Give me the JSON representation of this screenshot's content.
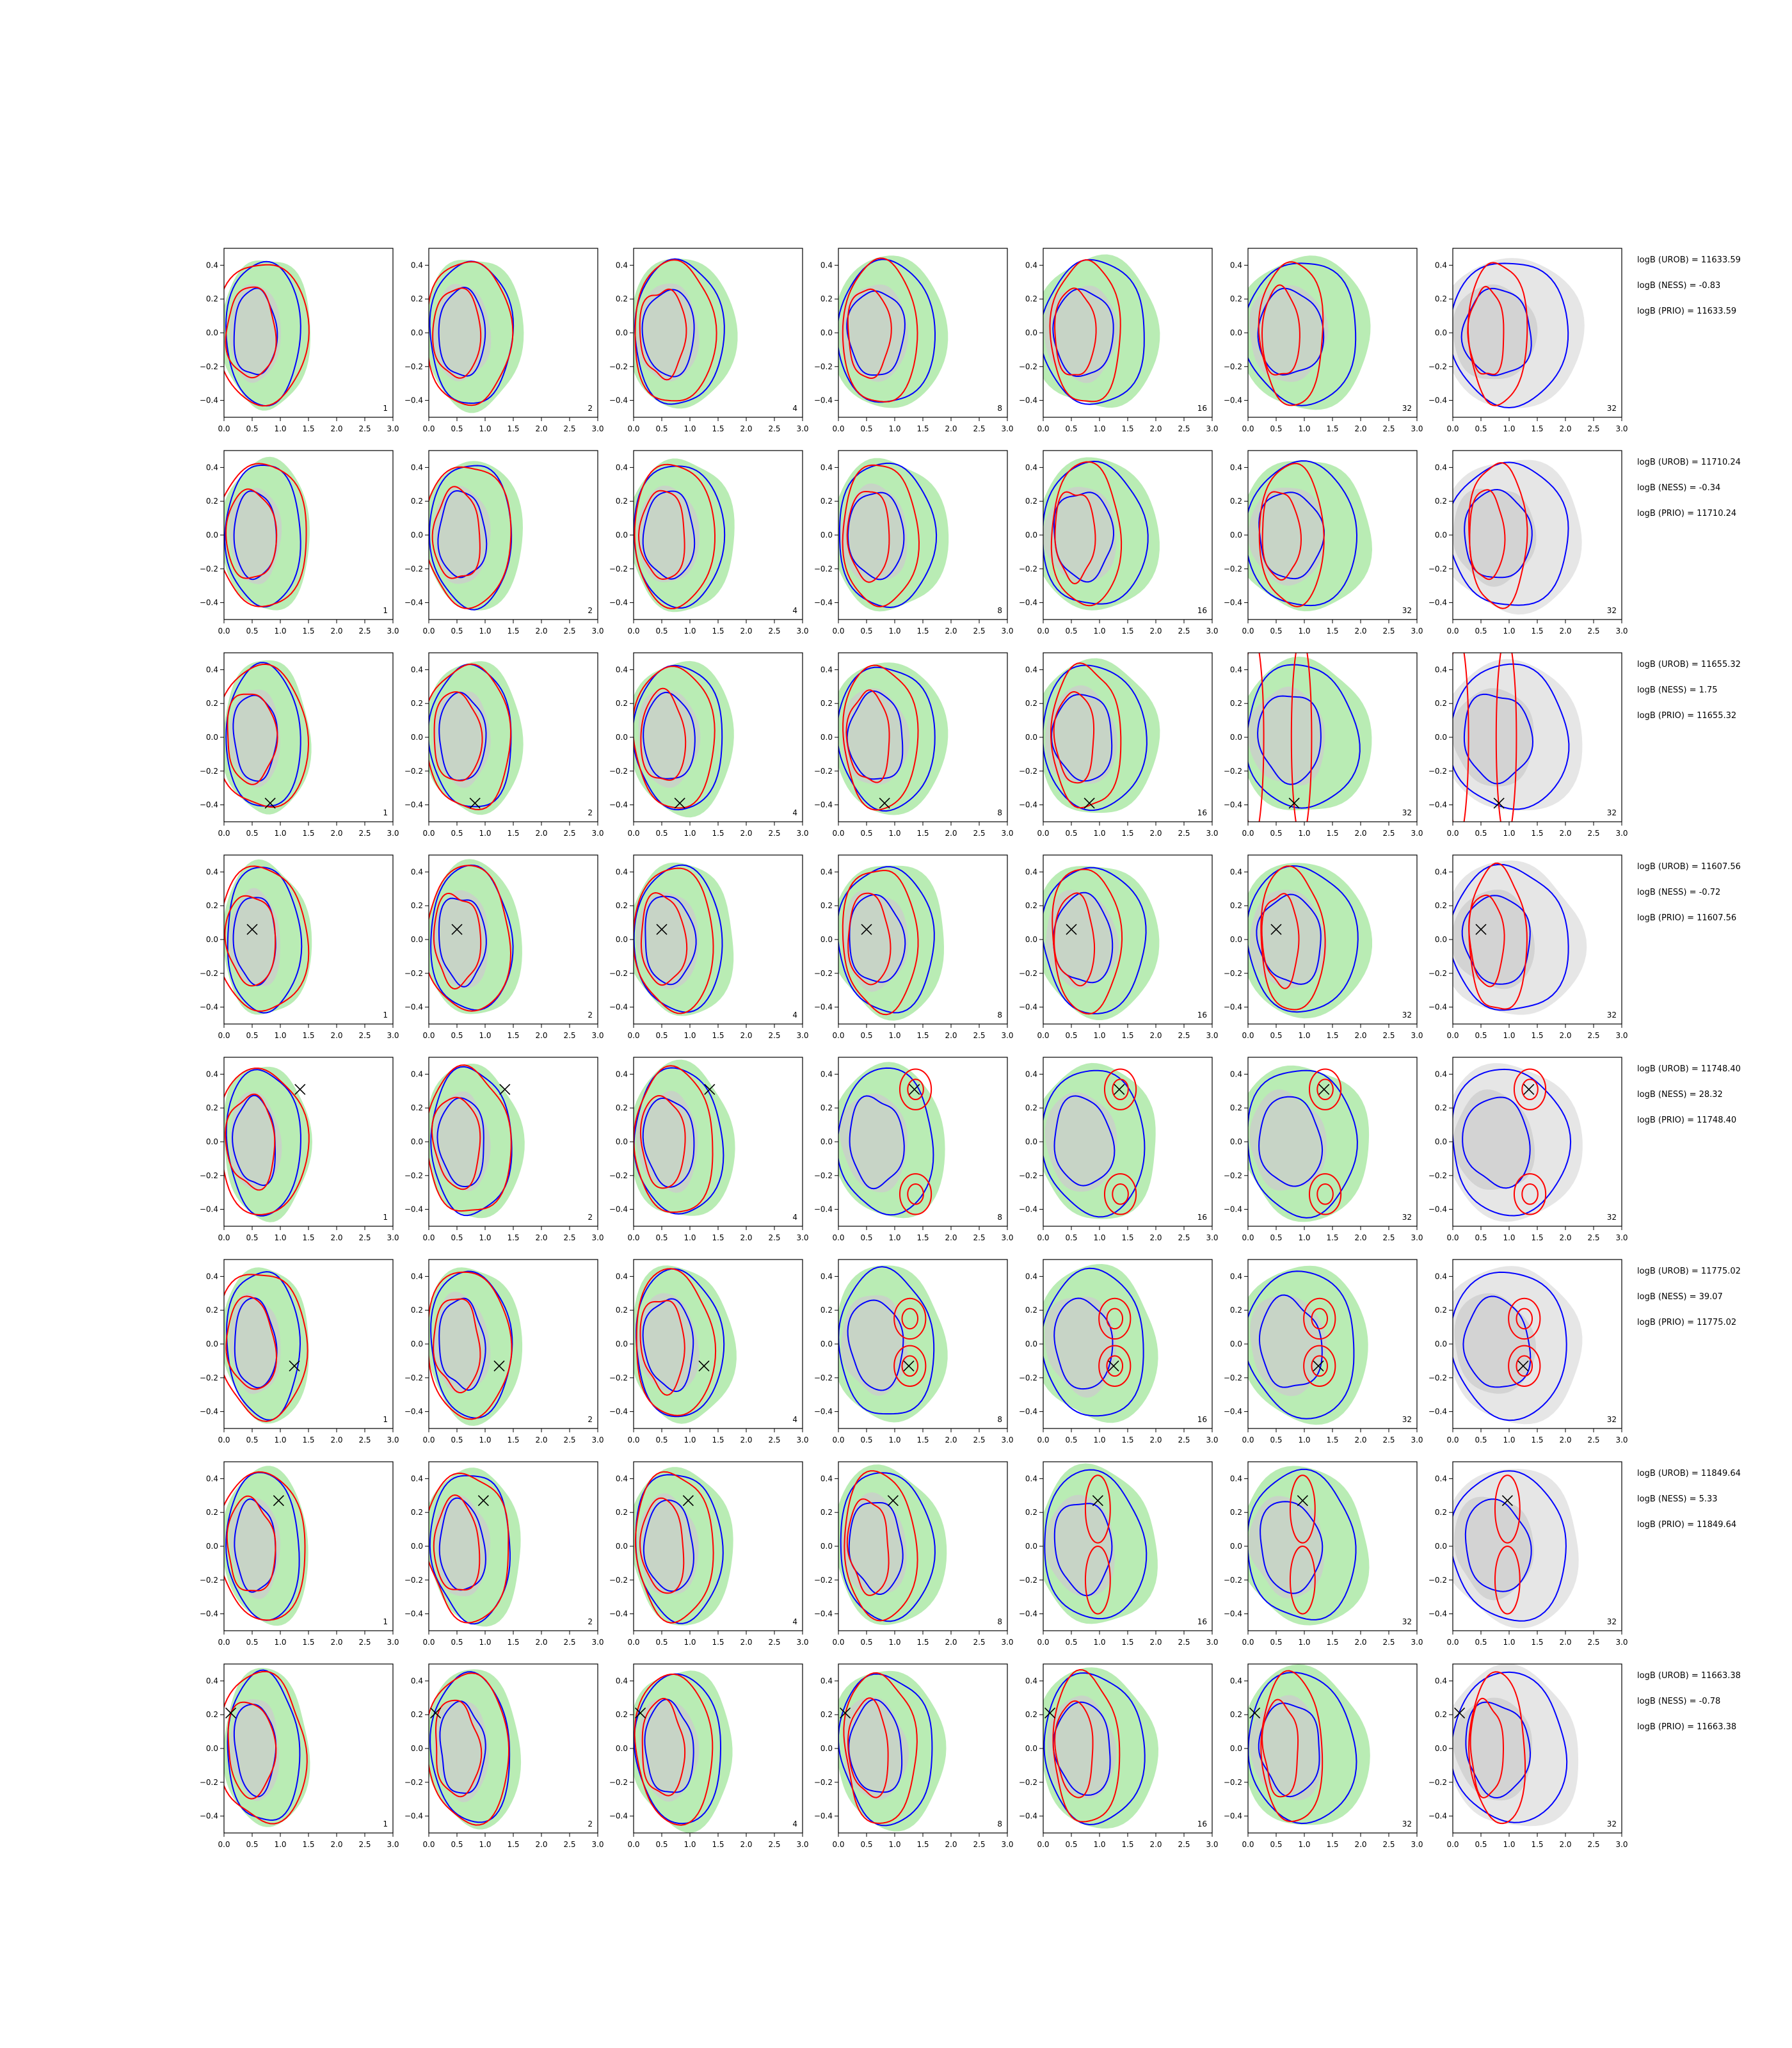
{
  "chart_data": {
    "type": "contour-grid",
    "rows": 8,
    "cols": 7,
    "xlim": [
      0.0,
      3.0
    ],
    "ylim": [
      -0.5,
      0.5
    ],
    "x_ticks": [
      "0.0",
      "0.5",
      "1.0",
      "1.5",
      "2.0",
      "2.5",
      "3.0"
    ],
    "y_ticks": [
      "0.4",
      "0.2",
      "0.0",
      "−0.2",
      "−0.4"
    ],
    "x_tick_values": [
      0,
      0.5,
      1.0,
      1.5,
      2.0,
      2.5,
      3.0
    ],
    "y_tick_values": [
      0.4,
      0.2,
      0.0,
      -0.2,
      -0.4
    ],
    "column_numbers": [
      "1",
      "2",
      "4",
      "8",
      "16",
      "32",
      "32"
    ],
    "colors": {
      "green_fill": "#b9ecb4",
      "gray_fill": "#cccccc",
      "light_gray_fill": "#e6e6e6",
      "blue_line": "#0000ff",
      "red_line": "#ff0000"
    },
    "markers": [
      null,
      null,
      {
        "x": 0.82,
        "y": -0.39
      },
      {
        "x": 0.5,
        "y": 0.06
      },
      {
        "x": 1.35,
        "y": 0.31
      },
      {
        "x": 1.25,
        "y": -0.13
      },
      {
        "x": 0.97,
        "y": 0.27
      },
      {
        "x": 0.12,
        "y": 0.21
      }
    ],
    "rows_stats": [
      {
        "urob": "logB (UROB) = 11633.59",
        "ness": "logB (NESS) = -0.83",
        "prio": "logB (PRIO) = 11633.59"
      },
      {
        "urob": "logB (UROB) = 11710.24",
        "ness": "logB (NESS) = -0.34",
        "prio": "logB (PRIO) = 11710.24"
      },
      {
        "urob": "logB (UROB) = 11655.32",
        "ness": "logB (NESS) = 1.75",
        "prio": "logB (PRIO) = 11655.32"
      },
      {
        "urob": "logB (UROB) = 11607.56",
        "ness": "logB (NESS) = -0.72",
        "prio": "logB (PRIO) = 11607.56"
      },
      {
        "urob": "logB (UROB) = 11748.40",
        "ness": "logB (NESS) = 28.32",
        "prio": "logB (PRIO) = 11748.40"
      },
      {
        "urob": "logB (UROB) = 11775.02",
        "ness": "logB (NESS) = 39.07",
        "prio": "logB (PRIO) = 11775.02"
      },
      {
        "urob": "logB (UROB) = 11849.64",
        "ness": "logB (NESS) = 5.33",
        "prio": "logB (PRIO) = 11849.64"
      },
      {
        "urob": "logB (UROB) = 11663.38",
        "ness": "logB (NESS) = -0.78",
        "prio": "logB (PRIO) = 11663.38"
      }
    ]
  }
}
